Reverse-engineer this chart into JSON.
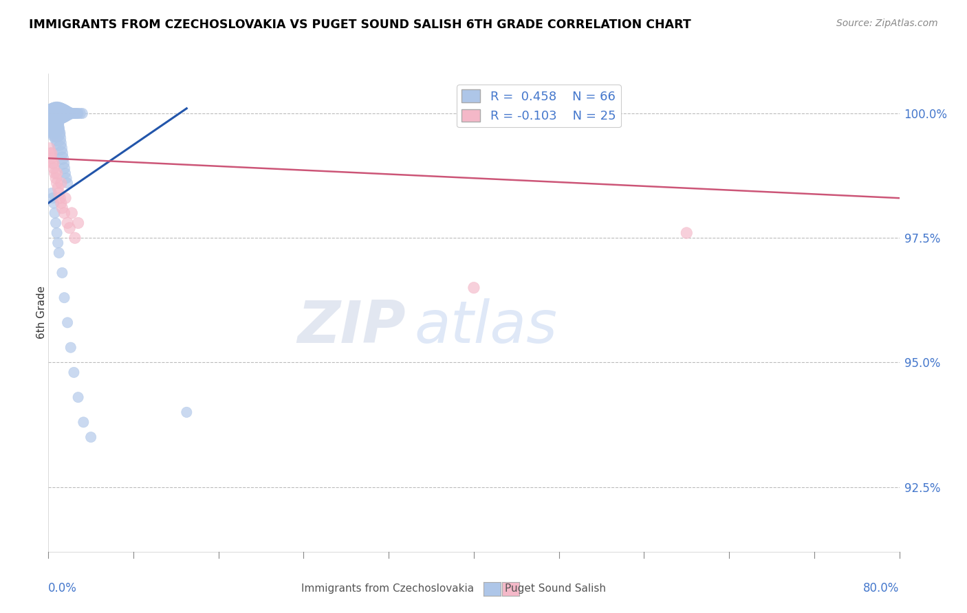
{
  "title": "IMMIGRANTS FROM CZECHOSLOVAKIA VS PUGET SOUND SALISH 6TH GRADE CORRELATION CHART",
  "source": "Source: ZipAtlas.com",
  "ylabel": "6th Grade",
  "ylabel_ticks": [
    "100.0%",
    "97.5%",
    "95.0%",
    "92.5%"
  ],
  "ylabel_tick_vals": [
    1.0,
    0.975,
    0.95,
    0.925
  ],
  "xlim": [
    0.0,
    0.8
  ],
  "ylim": [
    0.912,
    1.008
  ],
  "blue_color": "#aec6e8",
  "blue_line_color": "#2255aa",
  "pink_color": "#f4b8c8",
  "pink_line_color": "#cc5577",
  "watermark_zip": "ZIP",
  "watermark_atlas": "atlas",
  "blue_scatter_x": [
    0.001,
    0.002,
    0.003,
    0.004,
    0.005,
    0.006,
    0.007,
    0.008,
    0.009,
    0.01,
    0.011,
    0.012,
    0.013,
    0.014,
    0.015,
    0.016,
    0.017,
    0.018,
    0.019,
    0.02,
    0.021,
    0.022,
    0.023,
    0.024,
    0.025,
    0.026,
    0.027,
    0.028,
    0.03,
    0.032,
    0.001,
    0.002,
    0.003,
    0.004,
    0.005,
    0.006,
    0.007,
    0.008,
    0.009,
    0.01,
    0.011,
    0.012,
    0.013,
    0.014,
    0.015,
    0.016,
    0.017,
    0.018,
    0.003,
    0.004,
    0.005,
    0.006,
    0.007,
    0.008,
    0.009,
    0.01,
    0.013,
    0.015,
    0.018,
    0.021,
    0.024,
    0.028,
    0.033,
    0.04,
    0.13
  ],
  "blue_scatter_y": [
    1.0,
    1.0,
    1.0,
    1.0,
    1.0,
    1.0,
    1.0,
    1.0,
    1.0,
    1.0,
    1.0,
    1.0,
    1.0,
    1.0,
    1.0,
    1.0,
    1.0,
    1.0,
    1.0,
    1.0,
    1.0,
    1.0,
    1.0,
    1.0,
    1.0,
    1.0,
    1.0,
    1.0,
    1.0,
    1.0,
    0.999,
    0.999,
    0.998,
    0.998,
    0.997,
    0.997,
    0.996,
    0.996,
    0.995,
    0.994,
    0.993,
    0.992,
    0.991,
    0.99,
    0.989,
    0.988,
    0.987,
    0.986,
    0.984,
    0.983,
    0.982,
    0.98,
    0.978,
    0.976,
    0.974,
    0.972,
    0.968,
    0.963,
    0.958,
    0.953,
    0.948,
    0.943,
    0.938,
    0.935,
    0.94
  ],
  "blue_scatter_sizes": [
    80,
    90,
    100,
    110,
    120,
    130,
    140,
    150,
    140,
    130,
    120,
    110,
    100,
    90,
    80,
    70,
    60,
    50,
    45,
    40,
    35,
    30,
    30,
    30,
    30,
    30,
    30,
    30,
    30,
    30,
    200,
    180,
    160,
    140,
    120,
    100,
    90,
    80,
    70,
    60,
    55,
    50,
    45,
    40,
    35,
    30,
    30,
    30,
    30,
    30,
    30,
    30,
    30,
    30,
    30,
    30,
    30,
    30,
    30,
    30,
    30,
    30,
    30,
    30,
    30
  ],
  "pink_scatter_x": [
    0.001,
    0.002,
    0.003,
    0.004,
    0.005,
    0.006,
    0.007,
    0.008,
    0.009,
    0.01,
    0.011,
    0.012,
    0.013,
    0.015,
    0.018,
    0.02,
    0.025,
    0.003,
    0.005,
    0.008,
    0.012,
    0.016,
    0.022,
    0.028,
    0.4,
    0.6
  ],
  "pink_scatter_y": [
    0.993,
    0.992,
    0.991,
    0.99,
    0.989,
    0.988,
    0.987,
    0.986,
    0.985,
    0.984,
    0.983,
    0.982,
    0.981,
    0.98,
    0.978,
    0.977,
    0.975,
    0.992,
    0.99,
    0.988,
    0.986,
    0.983,
    0.98,
    0.978,
    0.965,
    0.976
  ],
  "pink_scatter_sizes": [
    35,
    35,
    35,
    35,
    35,
    35,
    35,
    35,
    35,
    35,
    35,
    35,
    35,
    35,
    35,
    35,
    35,
    35,
    35,
    35,
    35,
    35,
    35,
    35,
    35,
    35
  ],
  "blue_trend_x": [
    0.0,
    0.13
  ],
  "blue_trend_y": [
    0.982,
    1.001
  ],
  "pink_trend_x": [
    0.0,
    0.8
  ],
  "pink_trend_y": [
    0.991,
    0.983
  ]
}
